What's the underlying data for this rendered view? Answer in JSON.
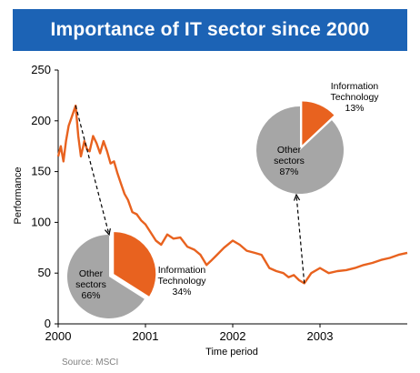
{
  "chart_data": {
    "type": "line",
    "title": "Importance of IT sector since 2000",
    "xlabel": "Time period",
    "ylabel": "Performance",
    "source": "Source: MSCI",
    "xlim": [
      2000,
      2004
    ],
    "ylim": [
      0,
      250
    ],
    "x_ticks": [
      "2000",
      "2001",
      "2002",
      "2003"
    ],
    "y_ticks": [
      "0",
      "50",
      "100",
      "150",
      "200",
      "250"
    ],
    "grid": false,
    "line_color": "#e8621f",
    "series": [
      {
        "x": [
          2000.0,
          2000.03,
          2000.06,
          2000.09,
          2000.12,
          2000.16,
          2000.2,
          2000.23,
          2000.26,
          2000.3,
          2000.33,
          2000.36,
          2000.4,
          2000.44,
          2000.48,
          2000.52,
          2000.56,
          2000.6,
          2000.64,
          2000.68,
          2000.72,
          2000.76,
          2000.8,
          2000.85,
          2000.9,
          2000.95,
          2001.0,
          2001.06,
          2001.12,
          2001.18,
          2001.25,
          2001.32,
          2001.4,
          2001.48,
          2001.56,
          2001.63,
          2001.7,
          2001.75,
          2001.82,
          2001.9,
          2002.0,
          2002.08,
          2002.16,
          2002.25,
          2002.33,
          2002.42,
          2002.5,
          2002.58,
          2002.64,
          2002.7,
          2002.76,
          2002.82,
          2002.9,
          2003.0,
          2003.1,
          2003.2,
          2003.3,
          2003.4,
          2003.5,
          2003.6,
          2003.7,
          2003.8,
          2003.9,
          2004.0
        ],
        "y": [
          165,
          175,
          160,
          180,
          195,
          205,
          215,
          185,
          165,
          180,
          172,
          170,
          185,
          178,
          168,
          180,
          170,
          158,
          160,
          148,
          138,
          128,
          122,
          110,
          108,
          102,
          98,
          90,
          82,
          78,
          88,
          84,
          85,
          76,
          73,
          68,
          58,
          62,
          68,
          75,
          82,
          78,
          72,
          70,
          68,
          55,
          52,
          50,
          46,
          48,
          43,
          40,
          50,
          55,
          50,
          52,
          53,
          55,
          58,
          60,
          63,
          65,
          68,
          70
        ]
      }
    ],
    "annotations": [
      {
        "name": "pie-2000",
        "anchor": {
          "x": 2000.2,
          "y": 215
        },
        "slices": [
          {
            "label": "Information Technology",
            "value_label": "34%",
            "value": 34,
            "color": "#e8621f"
          },
          {
            "label": "Other sectors",
            "value_label": "66%",
            "value": 66,
            "color": "#a6a6a6"
          }
        ]
      },
      {
        "name": "pie-2002",
        "anchor": {
          "x": 2002.82,
          "y": 40
        },
        "slices": [
          {
            "label": "Information Technology",
            "value_label": "13%",
            "value": 13,
            "color": "#e8621f"
          },
          {
            "label": "Other sectors",
            "value_label": "87%",
            "value": 87,
            "color": "#a6a6a6"
          }
        ]
      }
    ]
  }
}
